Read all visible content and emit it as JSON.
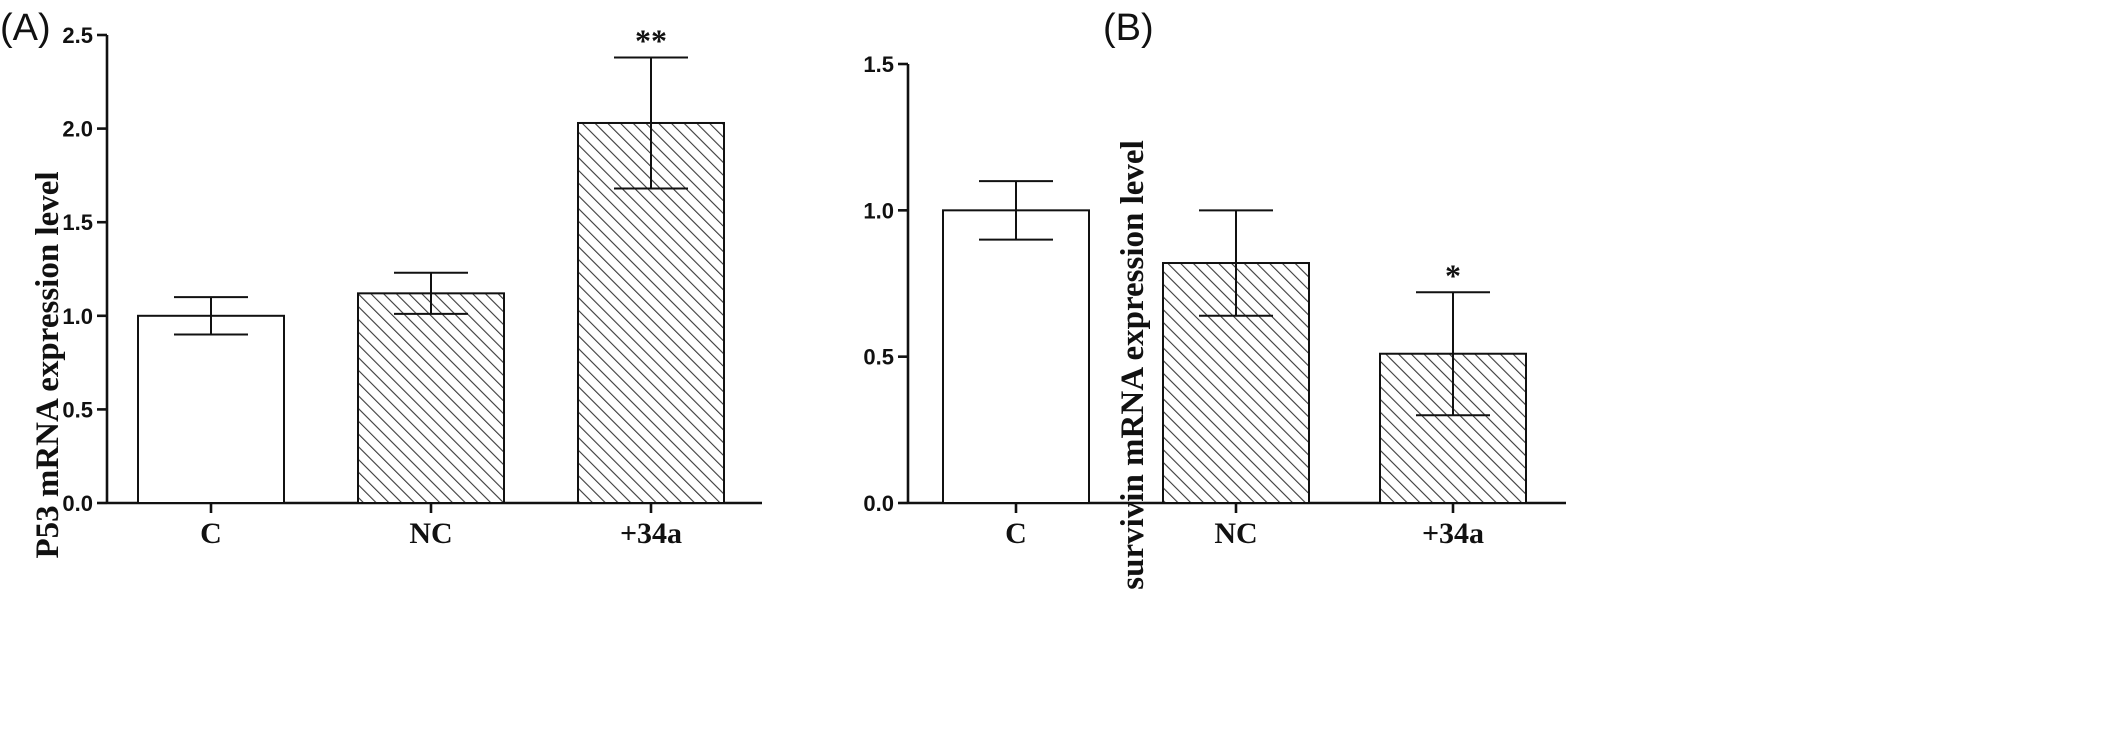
{
  "colors": {
    "ink": "#111111",
    "bar_fill": "#ffffff",
    "hatch": "#3a3a3a"
  },
  "chart_data": [
    {
      "panel_label": "(A)",
      "type": "bar",
      "ylabel": "P53 mRNA expression level",
      "ylim": [
        0,
        2.5
      ],
      "yticks": [
        "0.0",
        "0.5",
        "1.0",
        "1.5",
        "2.0",
        "2.5"
      ],
      "categories": [
        "C",
        "NC",
        "+34a"
      ],
      "values": [
        1.0,
        1.12,
        2.03
      ],
      "errors": [
        0.1,
        0.11,
        0.35
      ],
      "significance": [
        "",
        "",
        "**"
      ],
      "fill": [
        "plain",
        "hatched",
        "hatched"
      ],
      "grid": false
    },
    {
      "panel_label": "(B)",
      "type": "bar",
      "ylabel": "survivin mRNA expression level",
      "ylim": [
        0,
        1.5
      ],
      "yticks": [
        "0.0",
        "0.5",
        "1.0",
        "1.5"
      ],
      "categories": [
        "C",
        "NC",
        "+34a"
      ],
      "values": [
        1.0,
        0.82,
        0.51
      ],
      "errors": [
        0.1,
        0.18,
        0.21
      ],
      "significance": [
        "",
        "",
        "*"
      ],
      "fill": [
        "plain",
        "hatched",
        "hatched"
      ],
      "grid": false
    }
  ]
}
